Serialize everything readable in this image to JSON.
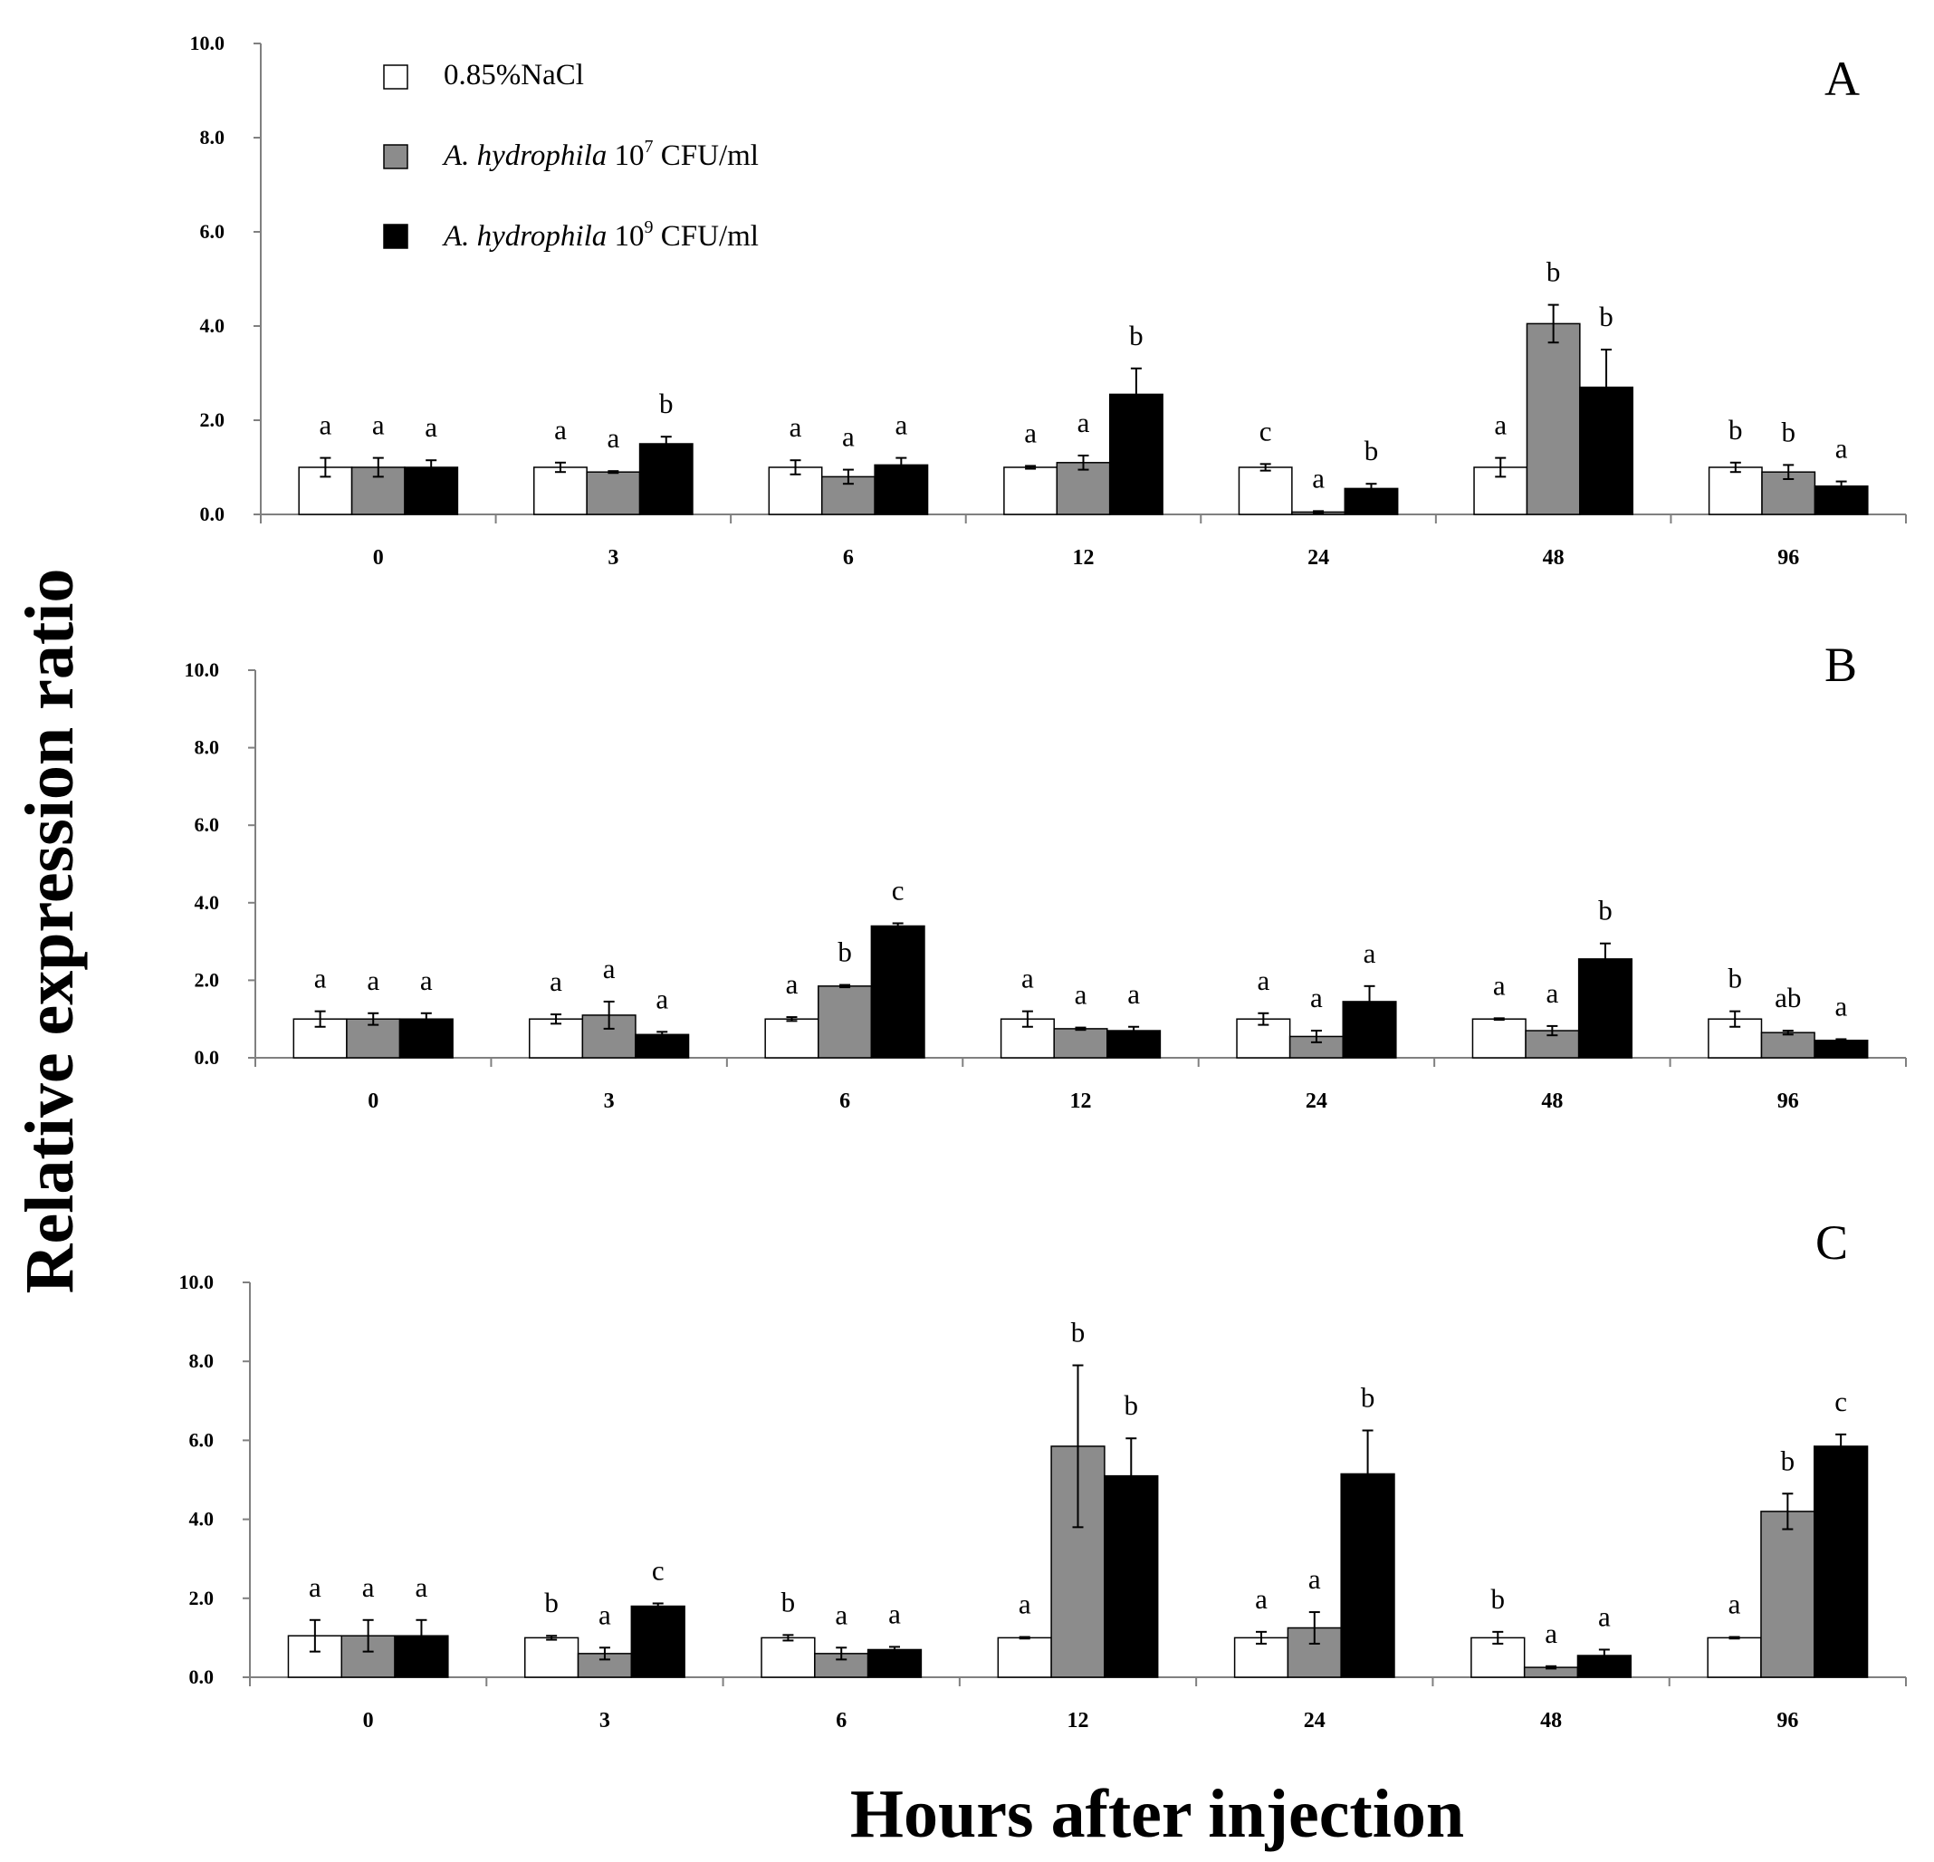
{
  "figure": {
    "y_axis_title": "Relative expression ratio",
    "x_axis_title": "Hours after injection"
  },
  "legend": [
    {
      "prefix": "",
      "italic": "",
      "base": "0.85%NaCl",
      "sup": "",
      "suffix": "",
      "color": "#ffffff"
    },
    {
      "prefix": "",
      "italic": "A. hydrophila",
      "base": " 10",
      "sup": "7",
      "suffix": " CFU/ml",
      "color": "#8c8c8c"
    },
    {
      "prefix": "",
      "italic": "A. hydrophila",
      "base": " 10",
      "sup": "9",
      "suffix": " CFU/ml",
      "color": "#000000"
    }
  ],
  "colors": {
    "nacl": "#ffffff",
    "low_dose": "#8c8c8c",
    "high_dose": "#000000",
    "axis": "#808080"
  },
  "chart_data": [
    {
      "type": "bar",
      "title": "A",
      "xlabel": "Hours after injection",
      "ylabel": "Relative expression ratio",
      "ylim": [
        0,
        10
      ],
      "yticks": [
        "0.0",
        "2.0",
        "4.0",
        "6.0",
        "8.0",
        "10.0"
      ],
      "categories": [
        "0",
        "3",
        "6",
        "12",
        "24",
        "48",
        "96"
      ],
      "series": [
        {
          "name": "0.85%NaCl",
          "values": [
            1.0,
            1.0,
            1.0,
            1.0,
            1.0,
            1.0,
            1.0
          ],
          "errors": [
            0.2,
            0.1,
            0.15,
            0.03,
            0.07,
            0.2,
            0.1
          ],
          "labels": [
            "a",
            "a",
            "a",
            "a",
            "c",
            "a",
            "b"
          ]
        },
        {
          "name": "A. hydrophila 10^7 CFU/ml",
          "values": [
            1.0,
            0.9,
            0.8,
            1.1,
            0.05,
            4.05,
            0.9
          ],
          "errors": [
            0.2,
            0.02,
            0.15,
            0.15,
            0.02,
            0.4,
            0.15
          ],
          "labels": [
            "a",
            "a",
            "a",
            "a",
            "a",
            "b",
            "b"
          ]
        },
        {
          "name": "A. hydrophila 10^9 CFU/ml",
          "values": [
            1.0,
            1.5,
            1.05,
            2.55,
            0.55,
            2.7,
            0.6
          ],
          "errors": [
            0.15,
            0.15,
            0.15,
            0.55,
            0.1,
            0.8,
            0.1
          ],
          "labels": [
            "a",
            "b",
            "a",
            "b",
            "b",
            "b",
            "a"
          ]
        }
      ]
    },
    {
      "type": "bar",
      "title": "B",
      "xlabel": "Hours after injection",
      "ylabel": "Relative expression ratio",
      "ylim": [
        0,
        10
      ],
      "yticks": [
        "0.0",
        "2.0",
        "4.0",
        "6.0",
        "8.0",
        "10.0"
      ],
      "categories": [
        "0",
        "3",
        "6",
        "12",
        "24",
        "48",
        "96"
      ],
      "series": [
        {
          "name": "0.85%NaCl",
          "values": [
            1.0,
            1.0,
            1.0,
            1.0,
            1.0,
            1.0,
            1.0
          ],
          "errors": [
            0.2,
            0.12,
            0.05,
            0.2,
            0.15,
            0.02,
            0.2
          ],
          "labels": [
            "a",
            "a",
            "a",
            "a",
            "a",
            "a",
            "b"
          ]
        },
        {
          "name": "A. hydrophila 10^7 CFU/ml",
          "values": [
            1.0,
            1.1,
            1.85,
            0.75,
            0.55,
            0.7,
            0.65
          ],
          "errors": [
            0.15,
            0.35,
            0.03,
            0.03,
            0.15,
            0.12,
            0.05
          ],
          "labels": [
            "a",
            "a",
            "b",
            "a",
            "a",
            "a",
            "ab"
          ]
        },
        {
          "name": "A. hydrophila 10^9 CFU/ml",
          "values": [
            1.0,
            0.6,
            3.4,
            0.7,
            1.45,
            2.55,
            0.45
          ],
          "errors": [
            0.15,
            0.07,
            0.07,
            0.1,
            0.4,
            0.4,
            0.03
          ],
          "labels": [
            "a",
            "a",
            "c",
            "a",
            "a",
            "b",
            "a"
          ]
        }
      ]
    },
    {
      "type": "bar",
      "title": "C",
      "xlabel": "Hours after injection",
      "ylabel": "Relative expression ratio",
      "ylim": [
        0,
        10
      ],
      "yticks": [
        "0.0",
        "2.0",
        "4.0",
        "6.0",
        "8.0",
        "10.0"
      ],
      "categories": [
        "0",
        "3",
        "6",
        "12",
        "24",
        "48",
        "96"
      ],
      "series": [
        {
          "name": "0.85%NaCl",
          "values": [
            1.05,
            1.0,
            1.0,
            1.0,
            1.0,
            1.0,
            1.0
          ],
          "errors": [
            0.4,
            0.05,
            0.07,
            0.02,
            0.15,
            0.15,
            0.02
          ],
          "labels": [
            "a",
            "b",
            "b",
            "a",
            "a",
            "b",
            "a"
          ]
        },
        {
          "name": "A. hydrophila 10^7 CFU/ml",
          "values": [
            1.05,
            0.6,
            0.6,
            5.85,
            1.25,
            0.25,
            4.2
          ],
          "errors": [
            0.4,
            0.15,
            0.15,
            2.05,
            0.4,
            0.03,
            0.45
          ],
          "labels": [
            "a",
            "a",
            "a",
            "b",
            "a",
            "a",
            "b"
          ]
        },
        {
          "name": "A. hydrophila 10^9 CFU/ml",
          "values": [
            1.05,
            1.8,
            0.7,
            5.1,
            5.15,
            0.55,
            5.85
          ],
          "errors": [
            0.4,
            0.07,
            0.07,
            0.95,
            1.1,
            0.15,
            0.3
          ],
          "labels": [
            "a",
            "c",
            "a",
            "b",
            "b",
            "a",
            "c"
          ]
        }
      ]
    }
  ]
}
